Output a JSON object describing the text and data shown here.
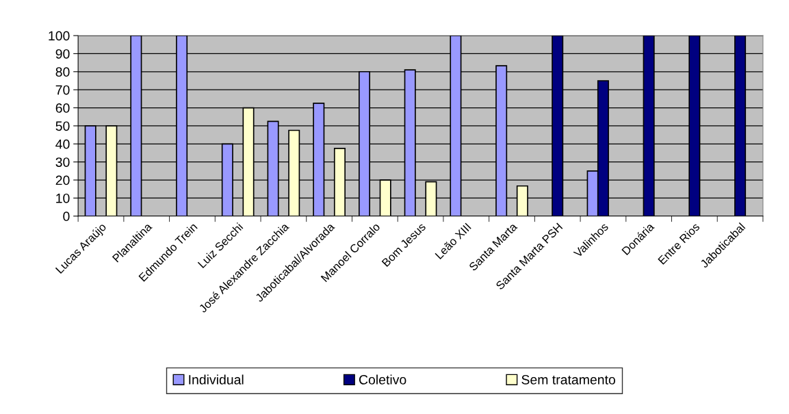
{
  "chart_data": {
    "type": "bar",
    "categories": [
      "Lucas Araújo",
      "Planaltina",
      "Edmundo Trein",
      "Luiz Secchi",
      "José Alexandre Zacchia",
      "Jaboticabal/Alvorada",
      "Manoel Corralo",
      "Bom Jesus",
      "Leão XIII",
      "Santa Marta",
      "Santa Marta PSH",
      "Valinhos",
      "Donária",
      "Entre Rios",
      "Jaboticabal"
    ],
    "series": [
      {
        "name": "Individual",
        "color": "#9999ff",
        "values": [
          50,
          100,
          100,
          40,
          52.5,
          62.5,
          80,
          81,
          100,
          83.3,
          null,
          25,
          null,
          null,
          null
        ]
      },
      {
        "name": "Coletivo",
        "color": "#000080",
        "values": [
          null,
          null,
          null,
          null,
          null,
          null,
          null,
          null,
          null,
          null,
          100,
          75,
          100,
          100,
          100
        ]
      },
      {
        "name": "Sem tratamento",
        "color": "#ffffcc",
        "values": [
          50,
          null,
          null,
          60,
          47.5,
          37.5,
          20,
          19,
          null,
          16.7,
          null,
          null,
          null,
          null,
          null
        ]
      }
    ],
    "ylim": [
      0,
      100
    ],
    "yticks": [
      0,
      10,
      20,
      30,
      40,
      50,
      60,
      70,
      80,
      90,
      100
    ],
    "grid": "y",
    "legend": "bottom"
  }
}
